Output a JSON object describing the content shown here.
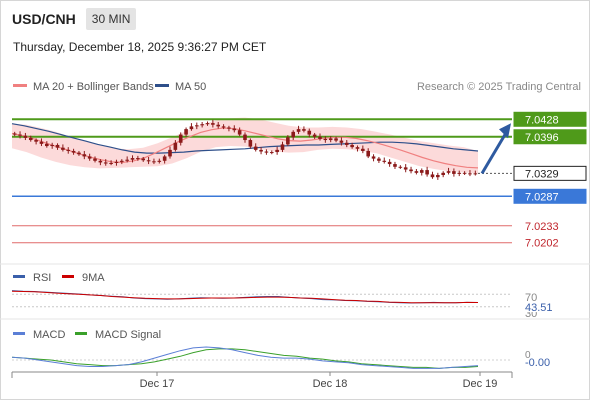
{
  "header": {
    "symbol": "USD/CNH",
    "interval": "30 MIN",
    "timestamp": "Thursday, December 18, 2025 9:36:27 PM CET"
  },
  "legend": {
    "ma20_label": "MA 20 + Bollinger Bands",
    "ma50_label": "MA 50",
    "copyright": "Research © 2025 Trading Central"
  },
  "colors": {
    "ma20": "#f08080",
    "ma50": "#2e4f8a",
    "band_fill": "#fbd3d3",
    "candle": "#8b1a1a",
    "resistance": "#4f9a1a",
    "current": "#222222",
    "pivot": "#3a78d8",
    "support": "#e06a6a",
    "arrow": "#2e5aa0",
    "rsi": "#3a5faa",
    "rsi_ma": "#cc0000",
    "macd": "#5b7fd6",
    "macd_signal": "#3aa02a"
  },
  "levels": [
    {
      "label": "7.0428",
      "kind": "resistance"
    },
    {
      "label": "7.0396",
      "kind": "resistance"
    },
    {
      "label": "7.0329",
      "kind": "current"
    },
    {
      "label": "7.0287",
      "kind": "pivot"
    },
    {
      "label": "7.0233",
      "kind": "support"
    },
    {
      "label": "7.0202",
      "kind": "support"
    }
  ],
  "x_axis": {
    "ticks": [
      "Dec 17",
      "Dec 18",
      "Dec 19"
    ]
  },
  "rsi_panel": {
    "rsi_label": "RSI",
    "ma_label": "9MA",
    "level_label": "70",
    "value_label": "43.51",
    "hidden_label": "30"
  },
  "macd_panel": {
    "macd_label": "MACD",
    "signal_label": "MACD Signal",
    "zero_label": "0",
    "value_label": "-0.00"
  },
  "chart_data": {
    "type": "candlestick",
    "title": "USD/CNH",
    "interval": "30 MIN",
    "grid": false,
    "price_series": {
      "name": "USD/CNH",
      "close": [
        7.04,
        7.0398,
        7.0394,
        7.039,
        7.0387,
        7.0383,
        7.0379,
        7.0381,
        7.0376,
        7.0372,
        7.037,
        7.0367,
        7.0364,
        7.036,
        7.0356,
        7.0352,
        7.0349,
        7.0347,
        7.0348,
        7.035,
        7.0352,
        7.0354,
        7.0357,
        7.0356,
        7.0353,
        7.0351,
        7.035,
        7.0352,
        7.036,
        7.0372,
        7.0385,
        7.04,
        7.041,
        7.0415,
        7.0417,
        7.0419,
        7.0421,
        7.0418,
        7.0415,
        7.0413,
        7.0411,
        7.0408,
        7.04,
        7.039,
        7.0378,
        7.0372,
        7.0369,
        7.0367,
        7.0368,
        7.0372,
        7.0382,
        7.0395,
        7.0405,
        7.041,
        7.0407,
        7.04,
        7.0396,
        7.0392,
        7.039,
        7.0393,
        7.0389,
        7.0385,
        7.0381,
        7.0377,
        7.0374,
        7.037,
        7.036,
        7.0356,
        7.0352,
        7.035,
        7.0346,
        7.0341,
        7.034,
        7.0336,
        7.0333,
        7.033,
        7.0335,
        7.0327,
        7.0322,
        7.0326,
        7.033,
        7.0333,
        7.0328,
        7.033,
        7.0329,
        7.0329,
        7.0329
      ]
    },
    "ma20": [
      7.0402,
      7.0398,
      7.0392,
      7.0385,
      7.0378,
      7.0372,
      7.0365,
      7.0359,
      7.0354,
      7.035,
      7.0349,
      7.0352,
      7.0358,
      7.0367,
      7.0377,
      7.0387,
      7.0396,
      7.0404,
      7.0409,
      7.0412,
      7.0411,
      7.0407,
      7.0402,
      7.0397,
      7.0392,
      7.0389,
      7.0388,
      7.039,
      7.0393,
      7.0395,
      7.0395,
      7.0393,
      7.0389,
      7.0384,
      7.0378,
      7.0372,
      7.0365,
      7.0358,
      7.0352,
      7.0347,
      7.0343,
      7.034,
      7.0339
    ],
    "ma50": [
      7.042,
      7.0416,
      7.0411,
      7.0406,
      7.04,
      7.0394,
      7.0388,
      7.0382,
      7.0377,
      7.0372,
      7.0368,
      7.0366,
      7.0366,
      7.0367,
      7.0368,
      7.037,
      7.0371,
      7.0372,
      7.0373,
      7.0374,
      7.0376,
      7.0378,
      7.0379,
      7.038,
      7.0381,
      7.0381,
      7.0382,
      7.0383,
      7.0384,
      7.0385,
      7.0386,
      7.0386,
      7.0385,
      7.0383,
      7.038,
      7.0377,
      7.0374,
      7.0372,
      7.037
    ],
    "bollinger_bands": {
      "upper": [
        7.042,
        7.0418,
        7.0412,
        7.0405,
        7.0396,
        7.0388,
        7.038,
        7.0375,
        7.0373,
        7.0376,
        7.0384,
        7.0395,
        7.0407,
        7.0418,
        7.0426,
        7.043,
        7.0431,
        7.0428,
        7.0422,
        7.0416,
        7.0413,
        7.0413,
        7.0414,
        7.0413,
        7.041,
        7.0405,
        7.04,
        7.0394,
        7.0388,
        7.0384,
        7.038,
        7.0377,
        7.037
      ],
      "lower": [
        7.0375,
        7.0368,
        7.0358,
        7.035,
        7.0344,
        7.034,
        7.0338,
        7.0339,
        7.034,
        7.0341,
        7.0342,
        7.0347,
        7.0357,
        7.0369,
        7.0377,
        7.0379,
        7.0378,
        7.0374,
        7.0369,
        7.0367,
        7.0368,
        7.0372,
        7.0374,
        7.0373,
        7.037,
        7.0366,
        7.0358,
        7.035,
        7.0342,
        7.0337,
        7.0333,
        7.0331,
        7.0329
      ]
    },
    "levels": {
      "resistance": [
        7.0428,
        7.0396
      ],
      "current": 7.0329,
      "pivot": 7.0287,
      "support": [
        7.0233,
        7.0202
      ]
    },
    "ylim": [
      7.0185,
      7.0445
    ],
    "arrow": {
      "direction": "up",
      "target": 7.0428
    },
    "x_ticks": [
      "Dec 17",
      "Dec 18",
      "Dec 19"
    ],
    "rsi": {
      "name": "RSI",
      "ylim": [
        0,
        100
      ],
      "reference_levels": [
        70,
        30
      ],
      "current": 43.51,
      "values": [
        82,
        80,
        79,
        77,
        75,
        73,
        71,
        68,
        66,
        64,
        62,
        58,
        56,
        55,
        54,
        55,
        57,
        59,
        58,
        57,
        58,
        60,
        62,
        63,
        63,
        60,
        58,
        56,
        53,
        52,
        50,
        49,
        47,
        46,
        44,
        43,
        42,
        43,
        44,
        43,
        43,
        44,
        43.5
      ],
      "ma9": [
        80,
        79,
        78,
        76,
        74,
        72,
        70,
        68,
        66,
        63,
        61,
        59,
        57,
        56,
        55,
        55,
        56,
        57,
        58,
        58,
        58,
        59,
        60,
        61,
        61,
        60,
        58,
        57,
        55,
        53,
        51,
        50,
        48,
        47,
        45,
        44,
        43,
        43,
        43,
        43,
        43,
        44,
        43.5
      ]
    },
    "macd": {
      "name": "MACD",
      "zero": 0,
      "current": -0.0,
      "macd": [
        0.0003,
        0.0002,
        0.0,
        -0.0002,
        -0.0004,
        -0.0006,
        -0.0007,
        -0.0007,
        -0.0006,
        -0.0005,
        -0.0002,
        0.0002,
        0.0006,
        0.001,
        0.0013,
        0.0014,
        0.0013,
        0.0011,
        0.0008,
        0.0005,
        0.0003,
        0.0002,
        0.0002,
        0.0001,
        -0.0001,
        -0.0002,
        -0.0003,
        -0.0005,
        -0.0006,
        -0.0007,
        -0.0008,
        -0.0009,
        -0.0009,
        -0.0009,
        -0.0008,
        -0.0007,
        -0.0006
      ],
      "signal": [
        0.0003,
        0.0002,
        0.0001,
        0.0,
        -0.0002,
        -0.0004,
        -0.0005,
        -0.0006,
        -0.0006,
        -0.0005,
        -0.0004,
        -0.0002,
        0.0001,
        0.0004,
        0.0008,
        0.0011,
        0.0012,
        0.0012,
        0.0011,
        0.0009,
        0.0007,
        0.0005,
        0.0004,
        0.0002,
        0.0001,
        -0.0001,
        -0.0002,
        -0.0004,
        -0.0005,
        -0.0006,
        -0.0007,
        -0.0008,
        -0.0008,
        -0.0009,
        -0.0008,
        -0.0008,
        -0.0007
      ]
    }
  }
}
